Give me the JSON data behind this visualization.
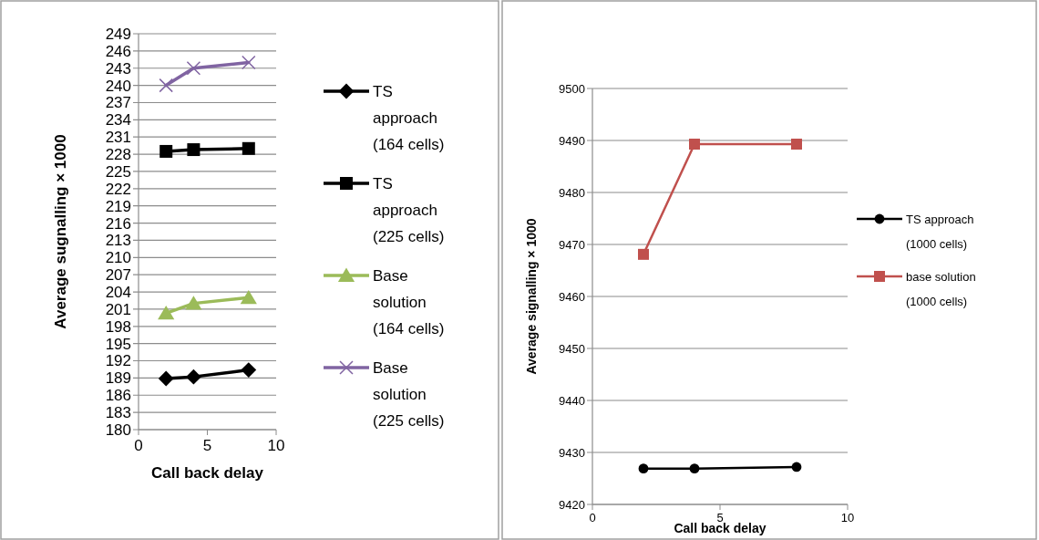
{
  "chart_data": [
    {
      "type": "line",
      "xlabel": "Call back delay",
      "ylabel": "Average sugnalling × 1000",
      "xlim": [
        0,
        10
      ],
      "xticks": [
        0,
        5,
        10
      ],
      "ylim": [
        180,
        249
      ],
      "yticks": [
        180,
        183,
        186,
        189,
        192,
        195,
        198,
        201,
        204,
        207,
        210,
        213,
        216,
        219,
        222,
        225,
        228,
        231,
        234,
        237,
        240,
        243,
        246,
        249
      ],
      "grid": "y",
      "legend": "right",
      "series": [
        {
          "name": "TS approach (164 cells)",
          "color": "#000000",
          "marker": "diamond",
          "x": [
            2,
            4,
            8
          ],
          "values": [
            188.9,
            189.2,
            190.4
          ]
        },
        {
          "name": "TS approach (225 cells)",
          "color": "#000000",
          "marker": "square",
          "x": [
            2,
            4,
            8
          ],
          "values": [
            228.5,
            228.8,
            229.0
          ]
        },
        {
          "name": "Base solution (164 cells)",
          "color": "#9bbb59",
          "marker": "triangle",
          "x": [
            2,
            4,
            8
          ],
          "values": [
            200.3,
            202.0,
            203.0
          ]
        },
        {
          "name": "Base solution (225 cells)",
          "color": "#8064a2",
          "marker": "cross",
          "x": [
            2,
            4,
            8
          ],
          "values": [
            240.0,
            243.0,
            244.0
          ]
        }
      ]
    },
    {
      "type": "line",
      "xlabel": "Call back delay",
      "ylabel": "Average signalling × 1000",
      "xlim": [
        0,
        10
      ],
      "xticks": [
        0,
        5,
        10
      ],
      "ylim": [
        9420,
        9500
      ],
      "yticks": [
        9420,
        9430,
        9440,
        9450,
        9460,
        9470,
        9480,
        9490,
        9500
      ],
      "grid": "y",
      "legend": "right",
      "series": [
        {
          "name": "TS approach (1000 cells)",
          "color": "#000000",
          "marker": "circle",
          "x": [
            2,
            4,
            8
          ],
          "values": [
            9426.9,
            9426.9,
            9427.2
          ]
        },
        {
          "name": "base solution (1000 cells)",
          "color": "#c0504d",
          "marker": "square",
          "x": [
            2,
            4,
            8
          ],
          "values": [
            9468.1,
            9489.3,
            9489.3
          ]
        }
      ]
    }
  ]
}
